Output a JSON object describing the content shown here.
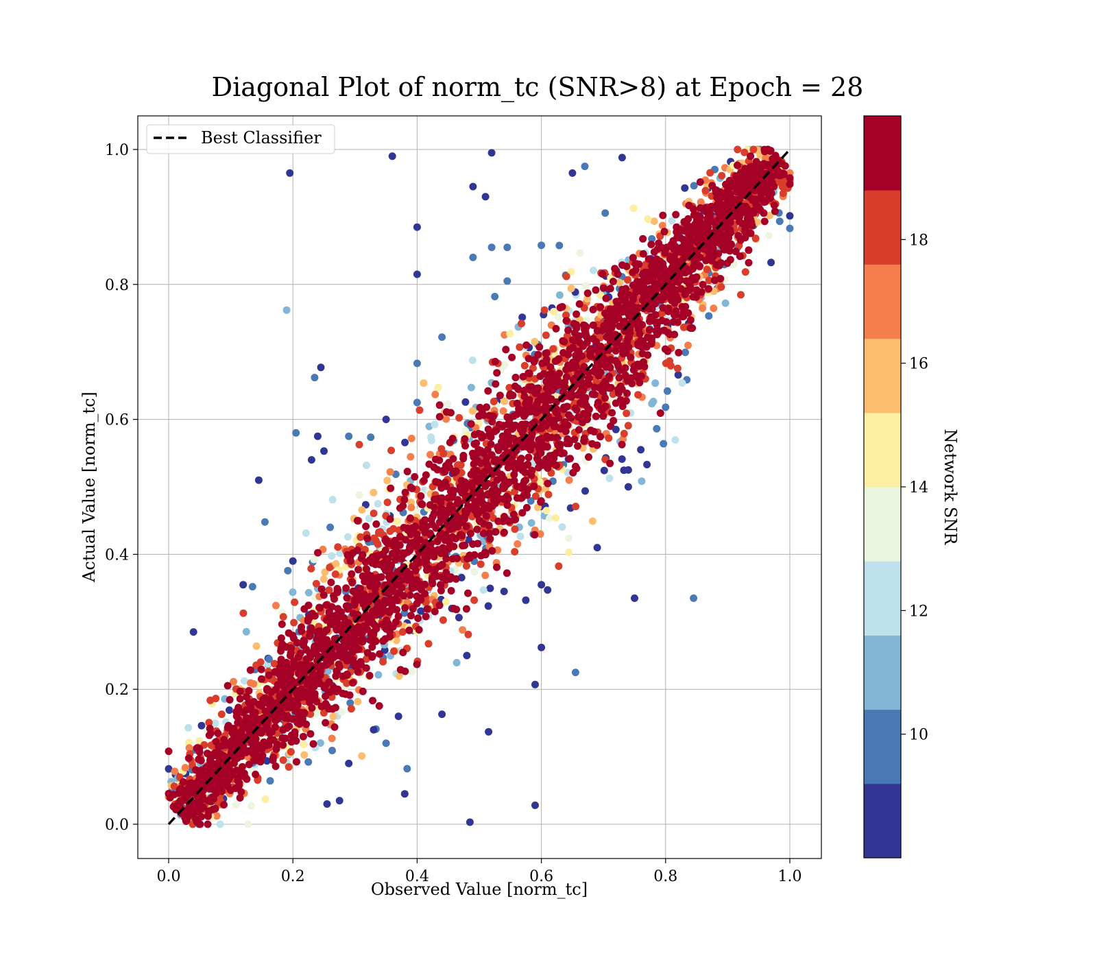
{
  "chart_data": {
    "type": "scatter",
    "title": "Diagonal Plot of norm_tc (SNR>8) at Epoch = 28",
    "xlabel": "Observed Value [norm_tc]",
    "ylabel": "Actual Value [norm_tc]",
    "xlim": [
      -0.05,
      1.05
    ],
    "ylim": [
      -0.05,
      1.05
    ],
    "xticks": [
      "0.0",
      "0.2",
      "0.4",
      "0.6",
      "0.8",
      "1.0"
    ],
    "yticks": [
      "0.0",
      "0.2",
      "0.4",
      "0.6",
      "0.8",
      "1.0"
    ],
    "grid": true,
    "legend": {
      "label": "Best Classifier",
      "placement": "upper-left"
    },
    "reference_line": {
      "name": "Best Classifier",
      "x": [
        0,
        1
      ],
      "y": [
        0,
        1
      ],
      "style": "dashed",
      "color": "#000000"
    },
    "colorbar": {
      "label": "Network SNR",
      "range": [
        8,
        20
      ],
      "ticks": [
        "10",
        "12",
        "14",
        "16",
        "18"
      ],
      "bins": [
        {
          "from": 8,
          "to": 9.2,
          "color": "#313695"
        },
        {
          "from": 9.2,
          "to": 10.4,
          "color": "#4a7ab6"
        },
        {
          "from": 10.4,
          "to": 11.6,
          "color": "#82b6d7"
        },
        {
          "from": 11.6,
          "to": 12.8,
          "color": "#bfe1ec"
        },
        {
          "from": 12.8,
          "to": 14,
          "color": "#ebf5df"
        },
        {
          "from": 14,
          "to": 15.2,
          "color": "#feeea1"
        },
        {
          "from": 15.2,
          "to": 16.4,
          "color": "#fcbd6e"
        },
        {
          "from": 16.4,
          "to": 17.6,
          "color": "#f47f4d"
        },
        {
          "from": 17.6,
          "to": 18.8,
          "color": "#d93d2b"
        },
        {
          "from": 18.8,
          "to": 20,
          "color": "#a50026"
        }
      ]
    },
    "outliers": [
      {
        "x": 0.36,
        "y": 0.99,
        "snr": 8.5
      },
      {
        "x": 0.52,
        "y": 0.995,
        "snr": 8.5
      },
      {
        "x": 0.195,
        "y": 0.965,
        "snr": 8.5
      },
      {
        "x": 0.49,
        "y": 0.945,
        "snr": 8.5
      },
      {
        "x": 0.51,
        "y": 0.93,
        "snr": 8.5
      },
      {
        "x": 0.4,
        "y": 0.885,
        "snr": 8.5
      },
      {
        "x": 0.4,
        "y": 0.815,
        "snr": 8.5
      },
      {
        "x": 0.19,
        "y": 0.762,
        "snr": 11
      },
      {
        "x": 0.44,
        "y": 0.722,
        "snr": 9.5
      },
      {
        "x": 0.245,
        "y": 0.677,
        "snr": 8.5
      },
      {
        "x": 0.235,
        "y": 0.662,
        "snr": 9.5
      },
      {
        "x": 0.4,
        "y": 0.683,
        "snr": 9.5
      },
      {
        "x": 0.4,
        "y": 0.625,
        "snr": 9.5
      },
      {
        "x": 0.35,
        "y": 0.6,
        "snr": 8.5
      },
      {
        "x": 0.205,
        "y": 0.58,
        "snr": 9.5
      },
      {
        "x": 0.24,
        "y": 0.575,
        "snr": 8.5
      },
      {
        "x": 0.29,
        "y": 0.575,
        "snr": 9.5
      },
      {
        "x": 0.25,
        "y": 0.553,
        "snr": 8.5
      },
      {
        "x": 0.23,
        "y": 0.54,
        "snr": 8.5
      },
      {
        "x": 0.145,
        "y": 0.51,
        "snr": 8.5
      },
      {
        "x": 0.155,
        "y": 0.448,
        "snr": 10
      },
      {
        "x": 0.04,
        "y": 0.285,
        "snr": 8.5
      },
      {
        "x": 0.12,
        "y": 0.355,
        "snr": 8.5
      },
      {
        "x": 0.135,
        "y": 0.352,
        "snr": 9.5
      },
      {
        "x": 0.67,
        "y": 0.975,
        "snr": 10
      },
      {
        "x": 0.65,
        "y": 0.965,
        "snr": 8.5
      },
      {
        "x": 0.49,
        "y": 0.84,
        "snr": 10
      },
      {
        "x": 0.52,
        "y": 0.855,
        "snr": 10
      },
      {
        "x": 0.545,
        "y": 0.855,
        "snr": 10
      },
      {
        "x": 0.6,
        "y": 0.858,
        "snr": 10
      },
      {
        "x": 0.545,
        "y": 0.805,
        "snr": 10
      },
      {
        "x": 0.525,
        "y": 0.782,
        "snr": 10
      },
      {
        "x": 0.69,
        "y": 0.41,
        "snr": 8.5
      },
      {
        "x": 0.75,
        "y": 0.335,
        "snr": 8.5
      },
      {
        "x": 0.845,
        "y": 0.335,
        "snr": 9.5
      },
      {
        "x": 0.54,
        "y": 0.345,
        "snr": 8.5
      },
      {
        "x": 0.575,
        "y": 0.332,
        "snr": 8.5
      },
      {
        "x": 0.6,
        "y": 0.355,
        "snr": 8.5
      },
      {
        "x": 0.6,
        "y": 0.262,
        "snr": 8.5
      },
      {
        "x": 0.655,
        "y": 0.225,
        "snr": 9.5
      },
      {
        "x": 0.59,
        "y": 0.207,
        "snr": 8.5
      },
      {
        "x": 0.48,
        "y": 0.25,
        "snr": 8.5
      },
      {
        "x": 0.44,
        "y": 0.163,
        "snr": 8.5
      },
      {
        "x": 0.37,
        "y": 0.16,
        "snr": 8.5
      },
      {
        "x": 0.515,
        "y": 0.137,
        "snr": 8.5
      },
      {
        "x": 0.38,
        "y": 0.045,
        "snr": 8.5
      },
      {
        "x": 0.59,
        "y": 0.028,
        "snr": 8.5
      },
      {
        "x": 0.485,
        "y": 0.003,
        "snr": 8.5
      },
      {
        "x": 0.29,
        "y": 0.09,
        "snr": 8.5
      },
      {
        "x": 0.35,
        "y": 0.12,
        "snr": 9.5
      },
      {
        "x": 0.33,
        "y": 0.14,
        "snr": 8.5
      },
      {
        "x": 0.74,
        "y": 0.5,
        "snr": 8.5
      },
      {
        "x": 0.74,
        "y": 0.525,
        "snr": 8.5
      },
      {
        "x": 0.76,
        "y": 0.555,
        "snr": 8.5
      },
      {
        "x": 0.77,
        "y": 0.533,
        "snr": 8.5
      },
      {
        "x": 0.72,
        "y": 0.585,
        "snr": 8.5
      },
      {
        "x": 0.8,
        "y": 0.618,
        "snr": 9.5
      },
      {
        "x": 0.73,
        "y": 0.988,
        "snr": 8.5
      },
      {
        "x": 0.2,
        "y": 0.39,
        "snr": 8.5
      },
      {
        "x": 0.26,
        "y": 0.44,
        "snr": 10
      },
      {
        "x": 0.275,
        "y": 0.035,
        "snr": 8.5
      },
      {
        "x": 0.255,
        "y": 0.03,
        "snr": 8.5
      }
    ]
  }
}
